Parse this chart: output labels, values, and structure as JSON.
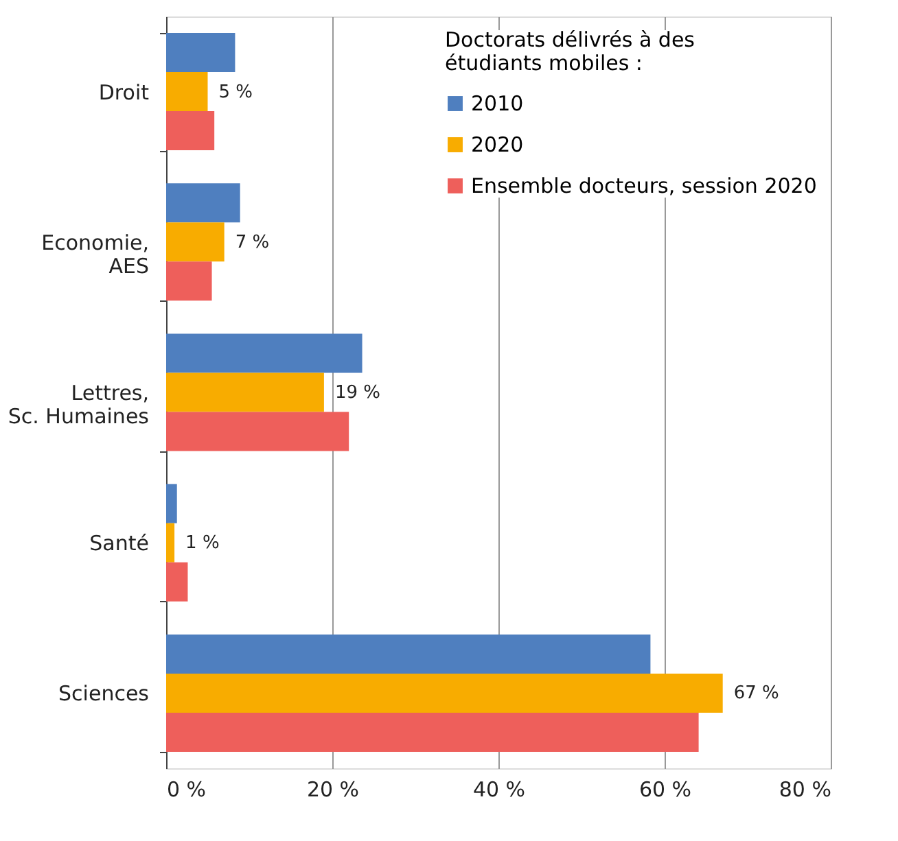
{
  "chart_data": {
    "type": "bar",
    "orientation": "horizontal",
    "categories": [
      "Droit",
      "Economie,\nAES",
      "Lettres,\nSc. Humaines",
      "Santé",
      "Sciences"
    ],
    "legend_title": "Doctorats délivrés à des\nétudiants mobiles :",
    "series": [
      {
        "name": "2010",
        "color": "#4f7fbf",
        "values": [
          8.3,
          8.9,
          23.6,
          1.3,
          58.3
        ]
      },
      {
        "name": "2020",
        "color": "#f8ac00",
        "values": [
          5,
          7,
          19,
          1,
          67
        ],
        "value_labels": [
          "5 %",
          "7 %",
          "19 %",
          "1 %",
          "67 %"
        ]
      },
      {
        "name": "Ensemble docteurs, session 2020",
        "color": "#ee5f5b",
        "values": [
          5.8,
          5.5,
          22,
          2.6,
          64.1
        ]
      }
    ],
    "xlim": [
      0,
      80
    ],
    "xticks": [
      {
        "value": 0,
        "label": "0 %"
      },
      {
        "value": 20,
        "label": "20 %"
      },
      {
        "value": 40,
        "label": "40 %"
      },
      {
        "value": 60,
        "label": "60 %"
      },
      {
        "value": 80,
        "label": "80 %"
      }
    ],
    "grid": "x",
    "legend": "top right"
  }
}
